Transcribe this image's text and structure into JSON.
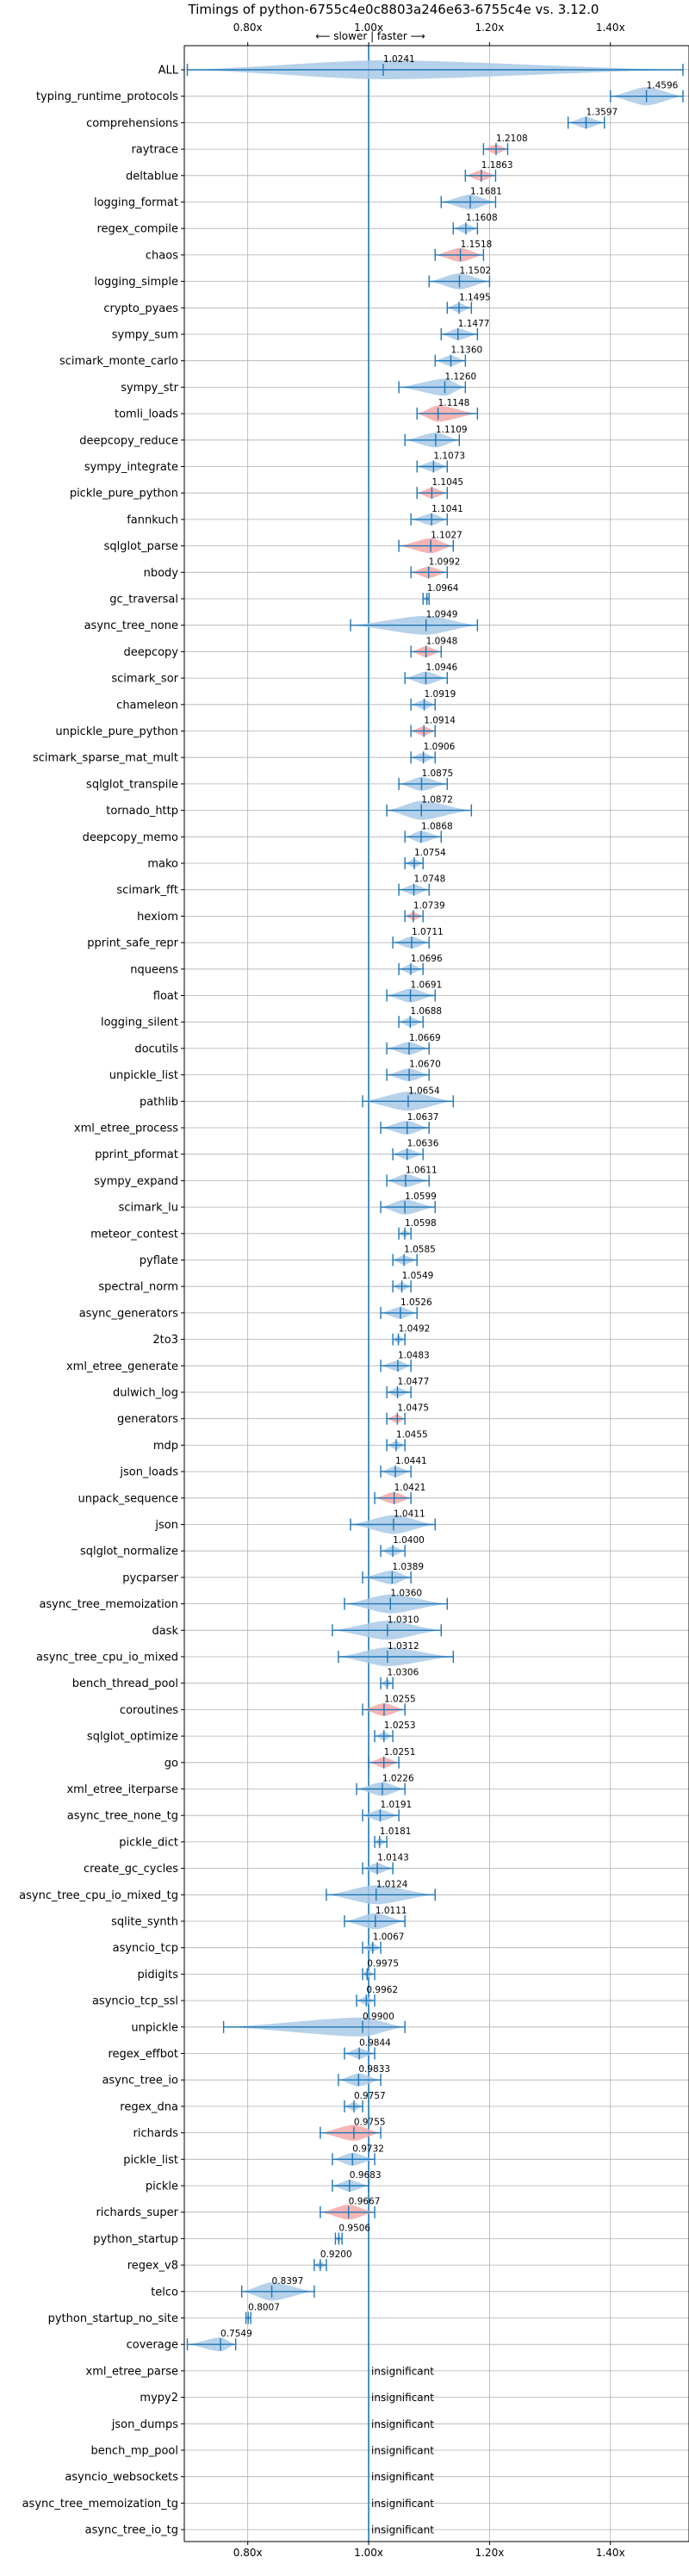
{
  "chart_data": {
    "type": "violin",
    "title": "Timings of python-6755c4e0c8803a246e63-6755c4e vs. 3.12.0",
    "subtitle": "⟵ slower | faster ⟶",
    "x_ticks": [
      "0.80x",
      "1.00x",
      "1.20x",
      "1.40x"
    ],
    "x_tick_values": [
      0.8,
      1.0,
      1.2,
      1.4
    ],
    "xlim": [
      0.695,
      1.53
    ],
    "grid": true,
    "reference_line": 1.0,
    "insignificant_label": "insignificant",
    "benchmarks": [
      {
        "name": "ALL",
        "value": "1.0241",
        "v": 1.0241,
        "lo": 0.7,
        "hi": 1.52,
        "color": "blue"
      },
      {
        "name": "typing_runtime_protocols",
        "value": "1.4596",
        "v": 1.4596,
        "lo": 1.4,
        "hi": 1.52,
        "color": "blue"
      },
      {
        "name": "comprehensions",
        "value": "1.3597",
        "v": 1.3597,
        "lo": 1.33,
        "hi": 1.39,
        "color": "blue"
      },
      {
        "name": "raytrace",
        "value": "1.2108",
        "v": 1.2108,
        "lo": 1.19,
        "hi": 1.23,
        "color": "red"
      },
      {
        "name": "deltablue",
        "value": "1.1863",
        "v": 1.1863,
        "lo": 1.16,
        "hi": 1.21,
        "color": "red"
      },
      {
        "name": "logging_format",
        "value": "1.1681",
        "v": 1.1681,
        "lo": 1.12,
        "hi": 1.21,
        "color": "blue"
      },
      {
        "name": "regex_compile",
        "value": "1.1608",
        "v": 1.1608,
        "lo": 1.14,
        "hi": 1.18,
        "color": "blue"
      },
      {
        "name": "chaos",
        "value": "1.1518",
        "v": 1.1518,
        "lo": 1.11,
        "hi": 1.19,
        "color": "red"
      },
      {
        "name": "logging_simple",
        "value": "1.1502",
        "v": 1.1502,
        "lo": 1.1,
        "hi": 1.2,
        "color": "blue"
      },
      {
        "name": "crypto_pyaes",
        "value": "1.1495",
        "v": 1.1495,
        "lo": 1.13,
        "hi": 1.17,
        "color": "blue"
      },
      {
        "name": "sympy_sum",
        "value": "1.1477",
        "v": 1.1477,
        "lo": 1.12,
        "hi": 1.18,
        "color": "blue"
      },
      {
        "name": "scimark_monte_carlo",
        "value": "1.1360",
        "v": 1.136,
        "lo": 1.11,
        "hi": 1.16,
        "color": "blue"
      },
      {
        "name": "sympy_str",
        "value": "1.1260",
        "v": 1.126,
        "lo": 1.05,
        "hi": 1.16,
        "color": "blue"
      },
      {
        "name": "tomli_loads",
        "value": "1.1148",
        "v": 1.1148,
        "lo": 1.08,
        "hi": 1.18,
        "color": "red"
      },
      {
        "name": "deepcopy_reduce",
        "value": "1.1109",
        "v": 1.1109,
        "lo": 1.06,
        "hi": 1.15,
        "color": "blue"
      },
      {
        "name": "sympy_integrate",
        "value": "1.1073",
        "v": 1.1073,
        "lo": 1.08,
        "hi": 1.13,
        "color": "blue"
      },
      {
        "name": "pickle_pure_python",
        "value": "1.1045",
        "v": 1.1045,
        "lo": 1.08,
        "hi": 1.13,
        "color": "red"
      },
      {
        "name": "fannkuch",
        "value": "1.1041",
        "v": 1.1041,
        "lo": 1.07,
        "hi": 1.13,
        "color": "blue"
      },
      {
        "name": "sqlglot_parse",
        "value": "1.1027",
        "v": 1.1027,
        "lo": 1.05,
        "hi": 1.14,
        "color": "red"
      },
      {
        "name": "nbody",
        "value": "1.0992",
        "v": 1.0992,
        "lo": 1.07,
        "hi": 1.13,
        "color": "red"
      },
      {
        "name": "gc_traversal",
        "value": "1.0964",
        "v": 1.0964,
        "lo": 1.09,
        "hi": 1.1,
        "color": "blue"
      },
      {
        "name": "async_tree_none",
        "value": "1.0949",
        "v": 1.0949,
        "lo": 0.97,
        "hi": 1.18,
        "color": "blue"
      },
      {
        "name": "deepcopy",
        "value": "1.0948",
        "v": 1.0948,
        "lo": 1.07,
        "hi": 1.12,
        "color": "red"
      },
      {
        "name": "scimark_sor",
        "value": "1.0946",
        "v": 1.0946,
        "lo": 1.06,
        "hi": 1.13,
        "color": "blue"
      },
      {
        "name": "chameleon",
        "value": "1.0919",
        "v": 1.0919,
        "lo": 1.07,
        "hi": 1.11,
        "color": "blue"
      },
      {
        "name": "unpickle_pure_python",
        "value": "1.0914",
        "v": 1.0914,
        "lo": 1.07,
        "hi": 1.11,
        "color": "red"
      },
      {
        "name": "scimark_sparse_mat_mult",
        "value": "1.0906",
        "v": 1.0906,
        "lo": 1.07,
        "hi": 1.11,
        "color": "blue"
      },
      {
        "name": "sqlglot_transpile",
        "value": "1.0875",
        "v": 1.0875,
        "lo": 1.05,
        "hi": 1.13,
        "color": "blue"
      },
      {
        "name": "tornado_http",
        "value": "1.0872",
        "v": 1.0872,
        "lo": 1.03,
        "hi": 1.17,
        "color": "blue"
      },
      {
        "name": "deepcopy_memo",
        "value": "1.0868",
        "v": 1.0868,
        "lo": 1.06,
        "hi": 1.12,
        "color": "blue"
      },
      {
        "name": "mako",
        "value": "1.0754",
        "v": 1.0754,
        "lo": 1.06,
        "hi": 1.09,
        "color": "blue"
      },
      {
        "name": "scimark_fft",
        "value": "1.0748",
        "v": 1.0748,
        "lo": 1.05,
        "hi": 1.1,
        "color": "blue"
      },
      {
        "name": "hexiom",
        "value": "1.0739",
        "v": 1.0739,
        "lo": 1.06,
        "hi": 1.09,
        "color": "red"
      },
      {
        "name": "pprint_safe_repr",
        "value": "1.0711",
        "v": 1.0711,
        "lo": 1.04,
        "hi": 1.1,
        "color": "blue"
      },
      {
        "name": "nqueens",
        "value": "1.0696",
        "v": 1.0696,
        "lo": 1.05,
        "hi": 1.09,
        "color": "blue"
      },
      {
        "name": "float",
        "value": "1.0691",
        "v": 1.0691,
        "lo": 1.03,
        "hi": 1.11,
        "color": "blue"
      },
      {
        "name": "logging_silent",
        "value": "1.0688",
        "v": 1.0688,
        "lo": 1.05,
        "hi": 1.09,
        "color": "blue"
      },
      {
        "name": "docutils",
        "value": "1.0669",
        "v": 1.0669,
        "lo": 1.03,
        "hi": 1.1,
        "color": "blue"
      },
      {
        "name": "unpickle_list",
        "value": "1.0670",
        "v": 1.067,
        "lo": 1.03,
        "hi": 1.1,
        "color": "blue"
      },
      {
        "name": "pathlib",
        "value": "1.0654",
        "v": 1.0654,
        "lo": 0.99,
        "hi": 1.14,
        "color": "blue"
      },
      {
        "name": "xml_etree_process",
        "value": "1.0637",
        "v": 1.0637,
        "lo": 1.02,
        "hi": 1.1,
        "color": "blue"
      },
      {
        "name": "pprint_pformat",
        "value": "1.0636",
        "v": 1.0636,
        "lo": 1.04,
        "hi": 1.09,
        "color": "blue"
      },
      {
        "name": "sympy_expand",
        "value": "1.0611",
        "v": 1.0611,
        "lo": 1.03,
        "hi": 1.1,
        "color": "blue"
      },
      {
        "name": "scimark_lu",
        "value": "1.0599",
        "v": 1.0599,
        "lo": 1.02,
        "hi": 1.11,
        "color": "blue"
      },
      {
        "name": "meteor_contest",
        "value": "1.0598",
        "v": 1.0598,
        "lo": 1.05,
        "hi": 1.07,
        "color": "blue"
      },
      {
        "name": "pyflate",
        "value": "1.0585",
        "v": 1.0585,
        "lo": 1.04,
        "hi": 1.08,
        "color": "blue"
      },
      {
        "name": "spectral_norm",
        "value": "1.0549",
        "v": 1.0549,
        "lo": 1.04,
        "hi": 1.07,
        "color": "blue"
      },
      {
        "name": "async_generators",
        "value": "1.0526",
        "v": 1.0526,
        "lo": 1.02,
        "hi": 1.08,
        "color": "blue"
      },
      {
        "name": "2to3",
        "value": "1.0492",
        "v": 1.0492,
        "lo": 1.04,
        "hi": 1.06,
        "color": "blue"
      },
      {
        "name": "xml_etree_generate",
        "value": "1.0483",
        "v": 1.0483,
        "lo": 1.02,
        "hi": 1.07,
        "color": "blue"
      },
      {
        "name": "dulwich_log",
        "value": "1.0477",
        "v": 1.0477,
        "lo": 1.03,
        "hi": 1.07,
        "color": "blue"
      },
      {
        "name": "generators",
        "value": "1.0475",
        "v": 1.0475,
        "lo": 1.03,
        "hi": 1.06,
        "color": "red"
      },
      {
        "name": "mdp",
        "value": "1.0455",
        "v": 1.0455,
        "lo": 1.03,
        "hi": 1.06,
        "color": "blue"
      },
      {
        "name": "json_loads",
        "value": "1.0441",
        "v": 1.0441,
        "lo": 1.02,
        "hi": 1.07,
        "color": "blue"
      },
      {
        "name": "unpack_sequence",
        "value": "1.0421",
        "v": 1.0421,
        "lo": 1.01,
        "hi": 1.07,
        "color": "red"
      },
      {
        "name": "json",
        "value": "1.0411",
        "v": 1.0411,
        "lo": 0.97,
        "hi": 1.11,
        "color": "blue"
      },
      {
        "name": "sqlglot_normalize",
        "value": "1.0400",
        "v": 1.04,
        "lo": 1.02,
        "hi": 1.06,
        "color": "blue"
      },
      {
        "name": "pycparser",
        "value": "1.0389",
        "v": 1.0389,
        "lo": 0.99,
        "hi": 1.07,
        "color": "blue"
      },
      {
        "name": "async_tree_memoization",
        "value": "1.0360",
        "v": 1.036,
        "lo": 0.96,
        "hi": 1.13,
        "color": "blue"
      },
      {
        "name": "dask",
        "value": "1.0310",
        "v": 1.031,
        "lo": 0.94,
        "hi": 1.12,
        "color": "blue"
      },
      {
        "name": "async_tree_cpu_io_mixed",
        "value": "1.0312",
        "v": 1.0312,
        "lo": 0.95,
        "hi": 1.14,
        "color": "blue"
      },
      {
        "name": "bench_thread_pool",
        "value": "1.0306",
        "v": 1.0306,
        "lo": 1.02,
        "hi": 1.04,
        "color": "blue"
      },
      {
        "name": "coroutines",
        "value": "1.0255",
        "v": 1.0255,
        "lo": 0.99,
        "hi": 1.06,
        "color": "red"
      },
      {
        "name": "sqlglot_optimize",
        "value": "1.0253",
        "v": 1.0253,
        "lo": 1.01,
        "hi": 1.04,
        "color": "blue"
      },
      {
        "name": "go",
        "value": "1.0251",
        "v": 1.0251,
        "lo": 1.0,
        "hi": 1.05,
        "color": "red"
      },
      {
        "name": "xml_etree_iterparse",
        "value": "1.0226",
        "v": 1.0226,
        "lo": 0.98,
        "hi": 1.06,
        "color": "blue"
      },
      {
        "name": "async_tree_none_tg",
        "value": "1.0191",
        "v": 1.0191,
        "lo": 0.99,
        "hi": 1.05,
        "color": "blue"
      },
      {
        "name": "pickle_dict",
        "value": "1.0181",
        "v": 1.0181,
        "lo": 1.01,
        "hi": 1.03,
        "color": "blue"
      },
      {
        "name": "create_gc_cycles",
        "value": "1.0143",
        "v": 1.0143,
        "lo": 0.99,
        "hi": 1.04,
        "color": "blue"
      },
      {
        "name": "async_tree_cpu_io_mixed_tg",
        "value": "1.0124",
        "v": 1.0124,
        "lo": 0.93,
        "hi": 1.11,
        "color": "blue"
      },
      {
        "name": "sqlite_synth",
        "value": "1.0111",
        "v": 1.0111,
        "lo": 0.96,
        "hi": 1.06,
        "color": "blue"
      },
      {
        "name": "asyncio_tcp",
        "value": "1.0067",
        "v": 1.0067,
        "lo": 0.99,
        "hi": 1.02,
        "color": "blue"
      },
      {
        "name": "pidigits",
        "value": "0.9975",
        "v": 0.9975,
        "lo": 0.99,
        "hi": 1.01,
        "color": "blue"
      },
      {
        "name": "asyncio_tcp_ssl",
        "value": "0.9962",
        "v": 0.9962,
        "lo": 0.98,
        "hi": 1.01,
        "color": "blue"
      },
      {
        "name": "unpickle",
        "value": "0.9900",
        "v": 0.99,
        "lo": 0.76,
        "hi": 1.06,
        "color": "blue"
      },
      {
        "name": "regex_effbot",
        "value": "0.9844",
        "v": 0.9844,
        "lo": 0.96,
        "hi": 1.01,
        "color": "blue"
      },
      {
        "name": "async_tree_io",
        "value": "0.9833",
        "v": 0.9833,
        "lo": 0.95,
        "hi": 1.02,
        "color": "blue"
      },
      {
        "name": "regex_dna",
        "value": "0.9757",
        "v": 0.9757,
        "lo": 0.96,
        "hi": 0.99,
        "color": "blue"
      },
      {
        "name": "richards",
        "value": "0.9755",
        "v": 0.9755,
        "lo": 0.92,
        "hi": 1.02,
        "color": "red"
      },
      {
        "name": "pickle_list",
        "value": "0.9732",
        "v": 0.9732,
        "lo": 0.94,
        "hi": 1.01,
        "color": "blue"
      },
      {
        "name": "pickle",
        "value": "0.9683",
        "v": 0.9683,
        "lo": 0.94,
        "hi": 1.0,
        "color": "blue"
      },
      {
        "name": "richards_super",
        "value": "0.9667",
        "v": 0.9667,
        "lo": 0.92,
        "hi": 1.01,
        "color": "red"
      },
      {
        "name": "python_startup",
        "value": "0.9506",
        "v": 0.9506,
        "lo": 0.945,
        "hi": 0.956,
        "color": "blue"
      },
      {
        "name": "regex_v8",
        "value": "0.9200",
        "v": 0.92,
        "lo": 0.91,
        "hi": 0.93,
        "color": "blue"
      },
      {
        "name": "telco",
        "value": "0.8397",
        "v": 0.8397,
        "lo": 0.79,
        "hi": 0.91,
        "color": "blue"
      },
      {
        "name": "python_startup_no_site",
        "value": "0.8007",
        "v": 0.8007,
        "lo": 0.797,
        "hi": 0.805,
        "color": "blue"
      },
      {
        "name": "coverage",
        "value": "0.7549",
        "v": 0.7549,
        "lo": 0.7,
        "hi": 0.78,
        "color": "blue"
      },
      {
        "name": "xml_etree_parse",
        "value": "insignificant",
        "v": null
      },
      {
        "name": "mypy2",
        "value": "insignificant",
        "v": null
      },
      {
        "name": "json_dumps",
        "value": "insignificant",
        "v": null
      },
      {
        "name": "bench_mp_pool",
        "value": "insignificant",
        "v": null
      },
      {
        "name": "asyncio_websockets",
        "value": "insignificant",
        "v": null
      },
      {
        "name": "async_tree_memoization_tg",
        "value": "insignificant",
        "v": null
      },
      {
        "name": "async_tree_io_tg",
        "value": "insignificant",
        "v": null
      }
    ]
  },
  "colors": {
    "blue_fill": "#a9c9e6",
    "red_fill": "#f4a8a8",
    "line": "#1f77b4",
    "grid": "#b0b0b0",
    "axes": "#000000"
  }
}
